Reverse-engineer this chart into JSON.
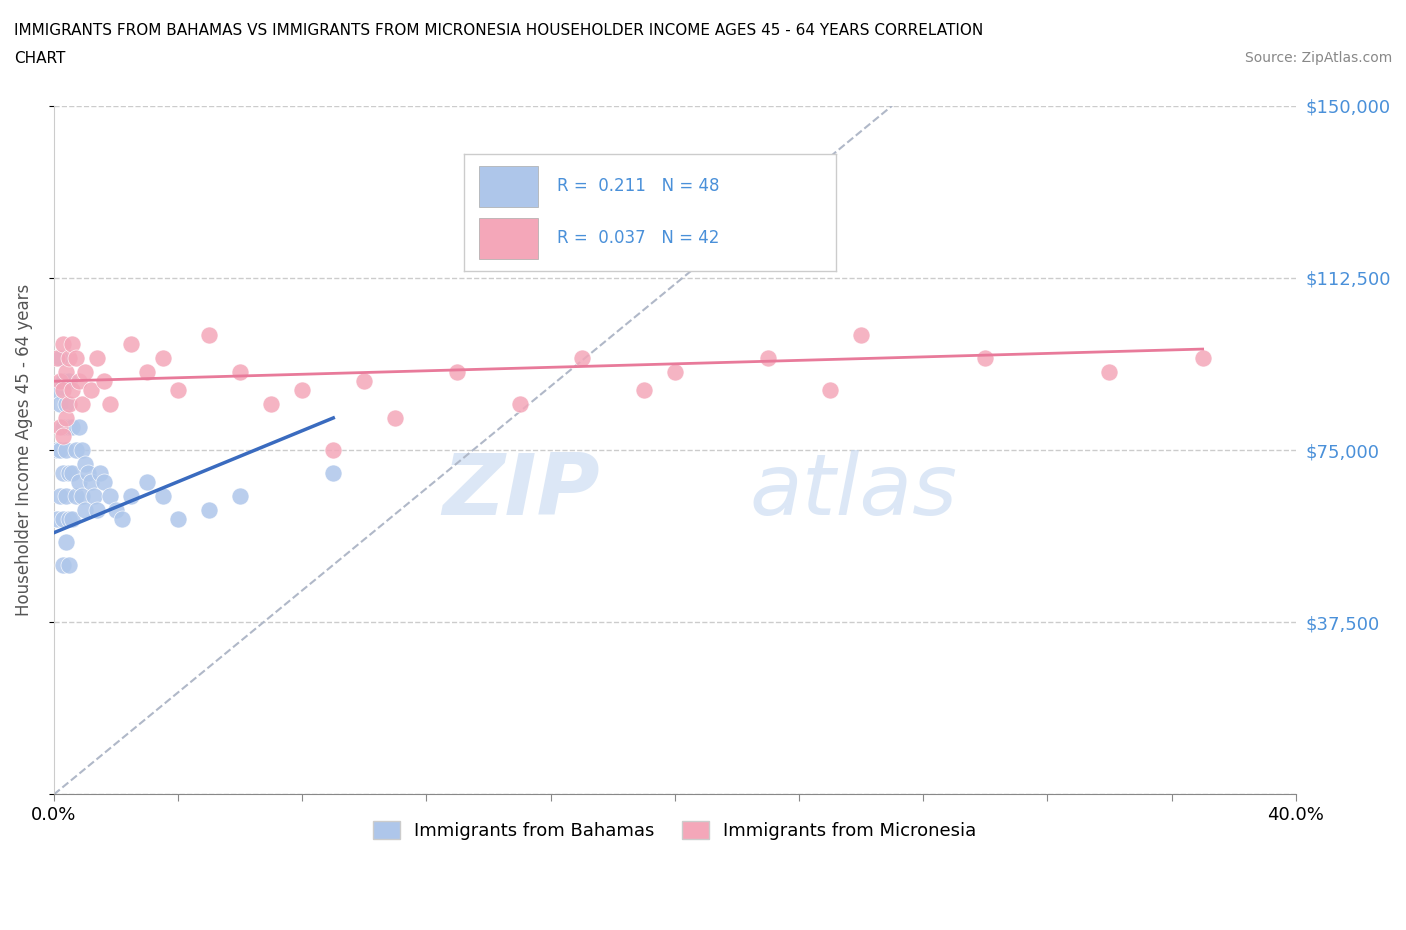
{
  "title_line1": "IMMIGRANTS FROM BAHAMAS VS IMMIGRANTS FROM MICRONESIA HOUSEHOLDER INCOME AGES 45 - 64 YEARS CORRELATION",
  "title_line2": "CHART",
  "source": "Source: ZipAtlas.com",
  "ylabel": "Householder Income Ages 45 - 64 years",
  "xlim": [
    0.0,
    0.4
  ],
  "ylim": [
    0,
    150000
  ],
  "yticks": [
    0,
    37500,
    75000,
    112500,
    150000
  ],
  "ytick_labels": [
    "",
    "$37,500",
    "$75,000",
    "$112,500",
    "$150,000"
  ],
  "xticks": [
    0.0,
    0.04,
    0.08,
    0.12,
    0.16,
    0.2,
    0.24,
    0.28,
    0.32,
    0.36,
    0.4
  ],
  "bahamas_R": 0.211,
  "bahamas_N": 48,
  "micronesia_R": 0.037,
  "micronesia_N": 42,
  "bahamas_color": "#aec6ea",
  "micronesia_color": "#f4a7b9",
  "bahamas_line_color": "#3a6bbf",
  "micronesia_line_color": "#e87a9a",
  "dashed_color": "#b0b8c8",
  "bahamas_x": [
    0.001,
    0.001,
    0.001,
    0.002,
    0.002,
    0.002,
    0.002,
    0.003,
    0.003,
    0.003,
    0.003,
    0.003,
    0.004,
    0.004,
    0.004,
    0.004,
    0.005,
    0.005,
    0.005,
    0.005,
    0.005,
    0.006,
    0.006,
    0.006,
    0.007,
    0.007,
    0.008,
    0.008,
    0.009,
    0.009,
    0.01,
    0.01,
    0.011,
    0.012,
    0.013,
    0.014,
    0.015,
    0.016,
    0.018,
    0.02,
    0.022,
    0.025,
    0.03,
    0.035,
    0.04,
    0.05,
    0.06,
    0.09
  ],
  "bahamas_y": [
    88000,
    75000,
    60000,
    95000,
    85000,
    75000,
    65000,
    90000,
    80000,
    70000,
    60000,
    50000,
    85000,
    75000,
    65000,
    55000,
    90000,
    80000,
    70000,
    60000,
    50000,
    80000,
    70000,
    60000,
    75000,
    65000,
    80000,
    68000,
    75000,
    65000,
    72000,
    62000,
    70000,
    68000,
    65000,
    62000,
    70000,
    68000,
    65000,
    62000,
    60000,
    65000,
    68000,
    65000,
    60000,
    62000,
    65000,
    70000
  ],
  "micronesia_x": [
    0.001,
    0.002,
    0.002,
    0.003,
    0.003,
    0.003,
    0.004,
    0.004,
    0.005,
    0.005,
    0.006,
    0.006,
    0.007,
    0.008,
    0.009,
    0.01,
    0.012,
    0.014,
    0.016,
    0.018,
    0.025,
    0.03,
    0.035,
    0.04,
    0.05,
    0.06,
    0.07,
    0.08,
    0.09,
    0.1,
    0.11,
    0.13,
    0.15,
    0.17,
    0.19,
    0.2,
    0.23,
    0.25,
    0.26,
    0.3,
    0.34,
    0.37
  ],
  "micronesia_y": [
    95000,
    90000,
    80000,
    98000,
    88000,
    78000,
    92000,
    82000,
    95000,
    85000,
    98000,
    88000,
    95000,
    90000,
    85000,
    92000,
    88000,
    95000,
    90000,
    85000,
    98000,
    92000,
    95000,
    88000,
    100000,
    92000,
    85000,
    88000,
    75000,
    90000,
    82000,
    92000,
    85000,
    95000,
    88000,
    92000,
    95000,
    88000,
    100000,
    95000,
    92000,
    95000
  ],
  "watermark_zip_color": "#c5d8f0",
  "watermark_atlas_color": "#c5d8f0"
}
